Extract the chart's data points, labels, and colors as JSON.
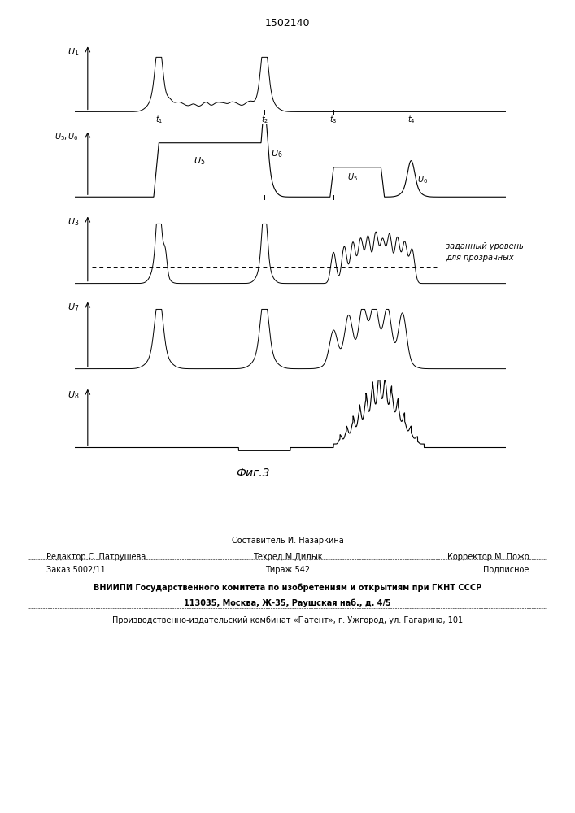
{
  "title": "1502140",
  "fig_label": "Фиг.3",
  "background_color": "#ffffff",
  "annotation_u3": "заданный уровень\nдля прозрачных",
  "footer_line1": "Составитель И. Назаркина",
  "footer_line2_left": "Редактор С. Патрушева",
  "footer_line2_mid": "Техред М.Дидык",
  "footer_line2_right": "Корректор М. Пожо",
  "footer_line3_left": "Заказ 5002/11",
  "footer_line3_mid": "Тираж 542",
  "footer_line3_right": "Подписное",
  "footer_line4": "ВНИИПИ Государственного комитета по изобретениям и открытиям при ГКНТ СССР",
  "footer_line5": "113035, Москва, Ж-35, Раушская наб., д. 4/5",
  "footer_line6": "Производственно-издательский комбинат «Патент», г. Ужгород, ул. Гагарина, 101"
}
